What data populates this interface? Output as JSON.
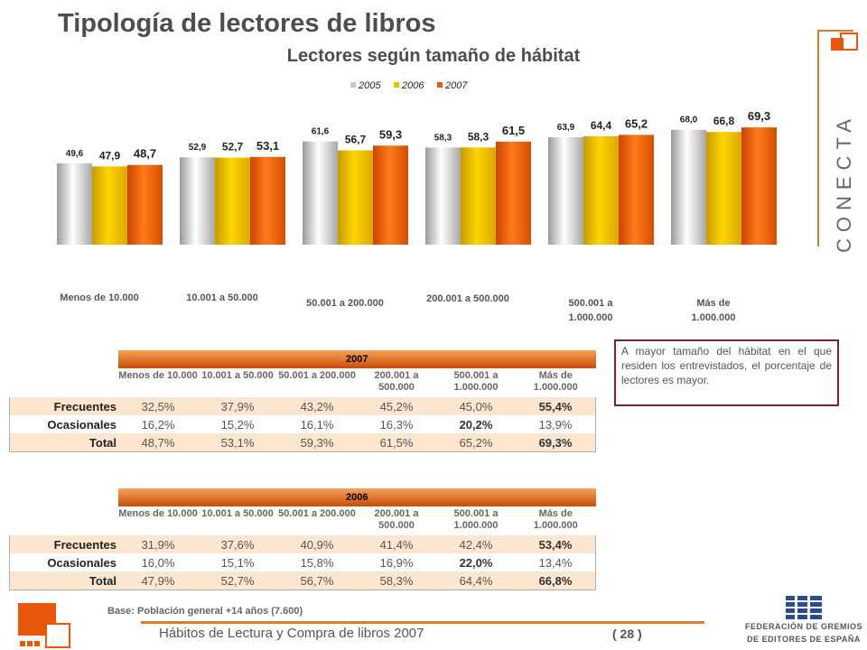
{
  "header": {
    "title": "Tipología de lectores de libros",
    "subtitle": "Lectores según tamaño de hábitat"
  },
  "chart_data": {
    "type": "bar",
    "title": "Lectores según tamaño de hábitat",
    "categories": [
      "Menos de 10.000",
      "10.001 a 50.000",
      "50.001 a 200.000",
      "200.001 a 500.000",
      "500.001 a 1.000.000",
      "Más de 1.000.000"
    ],
    "series": [
      {
        "name": "2005",
        "values": [
          49.6,
          52.9,
          61.6,
          58.3,
          63.9,
          68.0
        ],
        "labels": [
          "49,6",
          "52,9",
          "61,6",
          "58,3",
          "63,9",
          "68,0"
        ],
        "color": "#c8c8c8"
      },
      {
        "name": "2006",
        "values": [
          47.9,
          52.7,
          56.7,
          58.3,
          64.4,
          66.8
        ],
        "labels": [
          "47,9",
          "52,7",
          "56,7",
          "58,3",
          "64,4",
          "66,8"
        ],
        "color": "#f0c000"
      },
      {
        "name": "2007",
        "values": [
          48.7,
          53.1,
          59.3,
          61.5,
          65.2,
          69.3
        ],
        "labels": [
          "48,7",
          "53,1",
          "59,3",
          "61,5",
          "65,2",
          "69,3"
        ],
        "color": "#e8580a"
      }
    ],
    "legend_position": "top",
    "grid": false
  },
  "tables": [
    {
      "year": "2007",
      "columns": [
        "Menos de 10.000",
        "10.001 a 50.000",
        "50.001 a 200.000",
        "200.001 a 500.000",
        "500.001 a 1.000.000",
        "Más de 1.000.000"
      ],
      "rows": [
        {
          "label": "Frecuentes",
          "cells": [
            "32,5%",
            "37,9%",
            "43,2%",
            "45,2%",
            "45,0%",
            "55,4%"
          ],
          "bold": [
            5
          ]
        },
        {
          "label": "Ocasionales",
          "cells": [
            "16,2%",
            "15,2%",
            "16,1%",
            "16,3%",
            "20,2%",
            "13,9%"
          ],
          "bold": [
            4
          ]
        },
        {
          "label": "Total",
          "cells": [
            "48,7%",
            "53,1%",
            "59,3%",
            "61,5%",
            "65,2%",
            "69,3%"
          ],
          "bold": [
            5
          ]
        }
      ]
    },
    {
      "year": "2006",
      "columns": [
        "Menos de 10.000",
        "10.001 a 50.000",
        "50.001 a 200.000",
        "200.001 a 500.000",
        "500.001 a 1.000.000",
        "Más de 1.000.000"
      ],
      "rows": [
        {
          "label": "Frecuentes",
          "cells": [
            "31,9%",
            "37,6%",
            "40,9%",
            "41,4%",
            "42,4%",
            "53,4%"
          ],
          "bold": [
            5
          ]
        },
        {
          "label": "Ocasionales",
          "cells": [
            "16,0%",
            "15,1%",
            "15,8%",
            "16,9%",
            "22,0%",
            "13,4%"
          ],
          "bold": [
            4
          ]
        },
        {
          "label": "Total",
          "cells": [
            "47,9%",
            "52,7%",
            "56,7%",
            "58,3%",
            "64,4%",
            "66,8%"
          ],
          "bold": [
            5
          ]
        }
      ]
    }
  ],
  "note": "A mayor tamaño del hábitat en el que residen los entrevistados, el porcentaje de lectores es mayor.",
  "base_note": "Base: Población general +14 años (7.600)",
  "footer": {
    "text": "Hábitos de Lectura y Compra de libros 2007",
    "page": "( 28 )"
  },
  "logos": {
    "conecta": "CONECTA",
    "federacion_line1": "FEDERACIÓN DE GREMIOS",
    "federacion_line2": "DE EDITORES DE ESPAÑA"
  },
  "colors": {
    "accent": "#e07a2e",
    "note_border": "#7a1f3a"
  }
}
